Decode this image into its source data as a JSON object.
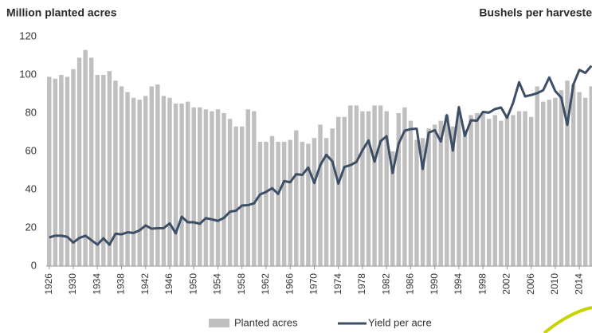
{
  "chart_data": {
    "type": "bar_line",
    "ylabel": "Million planted acres",
    "y2label": "Bushels per harveste",
    "x": [
      1926,
      1927,
      1928,
      1929,
      1930,
      1931,
      1932,
      1933,
      1934,
      1935,
      1936,
      1937,
      1938,
      1939,
      1940,
      1941,
      1942,
      1943,
      1944,
      1945,
      1946,
      1947,
      1948,
      1949,
      1950,
      1951,
      1952,
      1953,
      1954,
      1955,
      1956,
      1957,
      1958,
      1959,
      1960,
      1961,
      1962,
      1963,
      1964,
      1965,
      1966,
      1967,
      1968,
      1969,
      1970,
      1971,
      1972,
      1973,
      1974,
      1975,
      1976,
      1977,
      1978,
      1979,
      1980,
      1981,
      1982,
      1983,
      1984,
      1985,
      1986,
      1987,
      1988,
      1989,
      1990,
      1991,
      1992,
      1993,
      1994,
      1995,
      1996,
      1997,
      1998,
      1999,
      2000,
      2001,
      2002,
      2003,
      2004,
      2005,
      2006,
      2007,
      2008,
      2009,
      2010,
      2011,
      2012,
      2013,
      2014,
      2015,
      2016
    ],
    "xlim": [
      1925.5,
      2016.1
    ],
    "xticks": [
      1926,
      1930,
      1934,
      1938,
      1942,
      1946,
      1950,
      1954,
      1958,
      1962,
      1966,
      1970,
      1974,
      1978,
      1982,
      1986,
      1990,
      1994,
      1998,
      2002,
      2006,
      2010,
      2014
    ],
    "ylim": [
      0,
      120
    ],
    "yticks": [
      0,
      20,
      40,
      60,
      80,
      100,
      120
    ],
    "y2lim": [
      0,
      200
    ],
    "series": [
      {
        "name": "Planted acres",
        "type": "bar",
        "color": "#bfbfbf",
        "values": [
          99,
          98,
          100,
          99,
          103,
          109,
          113,
          109,
          100,
          100,
          102,
          97,
          94,
          91,
          88,
          87,
          89,
          94,
          95,
          89,
          88,
          85,
          85,
          86,
          83,
          83,
          82,
          81,
          82,
          80,
          77,
          73,
          73,
          82,
          81,
          65,
          65,
          68,
          65,
          65,
          66,
          71,
          65,
          64,
          67,
          74,
          67,
          72,
          78,
          78,
          84,
          84,
          81,
          81,
          84,
          84,
          81,
          60,
          80,
          83,
          76,
          66,
          67,
          72,
          74,
          76,
          79,
          73,
          79,
          71,
          79,
          80,
          80,
          77,
          79,
          76,
          79,
          79,
          81,
          81,
          78,
          94,
          86,
          87,
          88,
          92,
          97,
          95,
          91,
          88,
          94
        ]
      },
      {
        "name": "Yield per acre",
        "type": "line",
        "axis": "y2",
        "color": "#3d4f66",
        "values": [
          25,
          26.5,
          26.5,
          25.5,
          20.5,
          24.5,
          26.5,
          22.6,
          18.7,
          24.2,
          18.6,
          28.2,
          27.7,
          29.4,
          28.9,
          31.2,
          35.4,
          32.6,
          33,
          33.1,
          37.2,
          28.6,
          43,
          38.2,
          38.2,
          36.9,
          41.8,
          40.7,
          39.4,
          42,
          47.4,
          48.3,
          52.8,
          53.1,
          54.7,
          62.4,
          64.7,
          67.9,
          62.9,
          74.1,
          73.1,
          80.1,
          79.5,
          85.9,
          72.4,
          88.1,
          97,
          91.3,
          71.9,
          86.4,
          88,
          90.8,
          101,
          109.5,
          91,
          108.9,
          113.2,
          81.1,
          106.7,
          118,
          119.4,
          119.8,
          84.6,
          116.3,
          118.5,
          108.6,
          131.5,
          100.7,
          138.6,
          113.5,
          127.1,
          126.7,
          134.4,
          133.8,
          136.9,
          138.2,
          129.3,
          142.2,
          160.3,
          147.9,
          149.1,
          150.7,
          153.3,
          164.4,
          152.6,
          146.8,
          123.1,
          158.1,
          171,
          168.4,
          174.6
        ]
      }
    ]
  }
}
